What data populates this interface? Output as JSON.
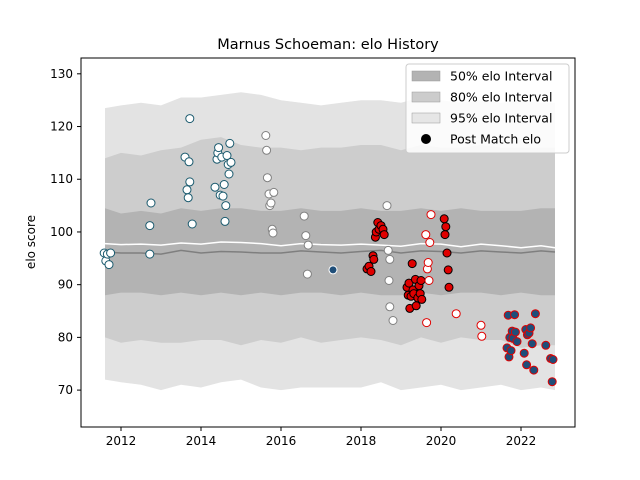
{
  "chart_data": {
    "type": "scatter",
    "title": "Marnus Schoeman: elo History",
    "xlabel": "",
    "ylabel": "elo score",
    "xlim": [
      2011.0,
      2023.35
    ],
    "ylim": [
      63,
      133
    ],
    "xticks": [
      2012,
      2014,
      2016,
      2018,
      2020,
      2022
    ],
    "yticks": [
      70,
      80,
      90,
      100,
      110,
      120,
      130
    ],
    "grid": false,
    "legend_position": "top-right",
    "legend": [
      {
        "label": "50% elo Interval",
        "kind": "patch",
        "color": "#b3b3b3"
      },
      {
        "label": "80% elo Interval",
        "kind": "patch",
        "color": "#cccccc"
      },
      {
        "label": "95% elo Interval",
        "kind": "patch",
        "color": "#e6e6e6"
      },
      {
        "label": "Post Match elo",
        "kind": "marker",
        "color": "#000000"
      }
    ],
    "intervals": {
      "x": [
        2011.6,
        2012.0,
        2012.5,
        2013.0,
        2013.5,
        2014.0,
        2014.5,
        2015.0,
        2015.5,
        2016.0,
        2016.5,
        2017.0,
        2017.5,
        2018.0,
        2018.5,
        2019.0,
        2019.5,
        2020.0,
        2020.5,
        2021.0,
        2021.5,
        2022.0,
        2022.5,
        2022.85
      ],
      "band95": {
        "upper": [
          123.5,
          124.0,
          124.5,
          124.0,
          125.5,
          125.5,
          126.0,
          126.5,
          126.0,
          125.0,
          124.5,
          124.0,
          124.5,
          125.0,
          125.0,
          124.5,
          125.5,
          125.0,
          124.5,
          125.0,
          124.5,
          125.0,
          124.5,
          124.5
        ],
        "lower": [
          72.0,
          71.5,
          71.0,
          70.0,
          71.0,
          70.5,
          71.5,
          72.0,
          70.5,
          70.0,
          70.5,
          70.5,
          70.5,
          70.5,
          71.5,
          70.0,
          70.5,
          71.0,
          70.0,
          70.5,
          71.0,
          70.0,
          70.5,
          70.0
        ]
      },
      "band80": {
        "upper": [
          114.0,
          115.0,
          114.5,
          115.5,
          116.0,
          117.5,
          118.0,
          116.5,
          116.0,
          116.0,
          115.5,
          116.0,
          116.0,
          116.5,
          116.5,
          115.5,
          116.5,
          116.0,
          116.0,
          116.5,
          116.0,
          116.0,
          116.0,
          116.0
        ],
        "lower": [
          80.0,
          79.0,
          79.5,
          79.0,
          79.0,
          79.5,
          79.5,
          78.5,
          79.5,
          79.0,
          80.0,
          79.0,
          79.5,
          80.0,
          79.5,
          78.5,
          80.0,
          79.0,
          80.0,
          79.5,
          79.5,
          78.0,
          78.5,
          78.5
        ]
      },
      "band50": {
        "upper": [
          104.5,
          103.5,
          104.0,
          103.5,
          104.5,
          104.0,
          104.5,
          104.5,
          104.0,
          104.0,
          104.5,
          104.0,
          104.0,
          104.5,
          104.0,
          104.0,
          104.5,
          104.0,
          104.5,
          104.0,
          104.0,
          104.0,
          104.5,
          104.5
        ],
        "lower": [
          88.0,
          88.5,
          88.5,
          88.0,
          88.5,
          88.0,
          88.5,
          88.0,
          88.5,
          88.0,
          88.5,
          88.5,
          88.0,
          88.5,
          88.0,
          88.0,
          88.5,
          88.0,
          88.5,
          88.5,
          88.0,
          88.5,
          88.0,
          88.0
        ]
      },
      "median_line": [
        96.2,
        96.0,
        96.0,
        95.8,
        96.5,
        96.0,
        96.3,
        96.2,
        96.0,
        96.0,
        96.4,
        96.2,
        96.0,
        96.3,
        96.5,
        96.0,
        96.4,
        96.3,
        96.0,
        96.4,
        96.2,
        96.0,
        96.4,
        96.2
      ],
      "mean_line": [
        97.8,
        97.6,
        97.7,
        97.5,
        97.9,
        97.7,
        98.1,
        98.0,
        97.8,
        97.4,
        97.8,
        97.6,
        97.5,
        97.7,
        97.5,
        97.3,
        97.8,
        97.7,
        97.2,
        97.7,
        97.4,
        97.0,
        97.4,
        97.0
      ]
    },
    "series": [
      {
        "fill": "#ffffff",
        "edge": "#1a5a6e",
        "points": [
          [
            2011.58,
            96.0
          ],
          [
            2011.62,
            94.5
          ],
          [
            2011.66,
            95.8
          ],
          [
            2011.7,
            93.8
          ],
          [
            2011.74,
            96.0
          ],
          [
            2012.72,
            101.2
          ],
          [
            2012.75,
            105.5
          ],
          [
            2012.72,
            95.8
          ],
          [
            2013.6,
            114.2
          ],
          [
            2013.65,
            108.0
          ],
          [
            2013.68,
            106.5
          ],
          [
            2013.7,
            113.3
          ],
          [
            2013.72,
            109.5
          ],
          [
            2013.72,
            121.5
          ],
          [
            2013.78,
            101.5
          ],
          [
            2014.35,
            108.5
          ],
          [
            2014.4,
            113.8
          ],
          [
            2014.42,
            115.0
          ],
          [
            2014.44,
            116.0
          ],
          [
            2014.48,
            107.0
          ],
          [
            2014.52,
            114.2
          ],
          [
            2014.55,
            106.8
          ],
          [
            2014.58,
            109.0
          ],
          [
            2014.6,
            102.0
          ],
          [
            2014.62,
            105.0
          ],
          [
            2014.65,
            114.5
          ],
          [
            2014.68,
            112.8
          ],
          [
            2014.7,
            111.0
          ],
          [
            2014.72,
            116.8
          ],
          [
            2014.75,
            113.2
          ]
        ]
      },
      {
        "fill": "#ffffff",
        "edge": "#808080",
        "points": [
          [
            2015.62,
            118.3
          ],
          [
            2015.64,
            115.5
          ],
          [
            2015.66,
            110.3
          ],
          [
            2015.7,
            107.2
          ],
          [
            2015.72,
            105.0
          ],
          [
            2015.75,
            105.5
          ],
          [
            2015.78,
            100.5
          ],
          [
            2015.8,
            99.8
          ],
          [
            2015.82,
            107.5
          ],
          [
            2016.58,
            103.0
          ],
          [
            2016.62,
            99.3
          ],
          [
            2016.66,
            92.0
          ],
          [
            2016.68,
            97.5
          ],
          [
            2018.65,
            105.0
          ],
          [
            2018.68,
            96.5
          ],
          [
            2018.7,
            90.8
          ],
          [
            2018.72,
            85.8
          ],
          [
            2018.72,
            94.8
          ],
          [
            2018.8,
            83.2
          ]
        ]
      },
      {
        "fill": "#1f4e79",
        "edge": "#ffffff",
        "points": [
          [
            2017.3,
            92.8
          ]
        ]
      },
      {
        "fill": "#e00000",
        "edge": "#000000",
        "points": [
          [
            2018.15,
            93.0
          ],
          [
            2018.2,
            93.5
          ],
          [
            2018.25,
            92.5
          ],
          [
            2018.3,
            95.5
          ],
          [
            2018.32,
            94.8
          ],
          [
            2018.36,
            99.0
          ],
          [
            2018.38,
            100.0
          ],
          [
            2018.42,
            101.8
          ],
          [
            2018.45,
            100.5
          ],
          [
            2018.5,
            101.2
          ],
          [
            2018.55,
            100.5
          ],
          [
            2018.58,
            99.5
          ],
          [
            2019.15,
            89.5
          ],
          [
            2019.18,
            88.0
          ],
          [
            2019.2,
            90.3
          ],
          [
            2019.22,
            85.5
          ],
          [
            2019.25,
            87.8
          ],
          [
            2019.28,
            94.0
          ],
          [
            2019.3,
            89.0
          ],
          [
            2019.32,
            88.3
          ],
          [
            2019.36,
            91.0
          ],
          [
            2019.38,
            86.0
          ],
          [
            2019.42,
            87.5
          ],
          [
            2019.45,
            89.8
          ],
          [
            2019.48,
            88.3
          ],
          [
            2019.5,
            90.8
          ],
          [
            2019.52,
            87.2
          ],
          [
            2020.08,
            102.5
          ],
          [
            2020.1,
            99.5
          ],
          [
            2020.12,
            101.0
          ],
          [
            2020.15,
            96.0
          ],
          [
            2020.18,
            92.8
          ],
          [
            2020.2,
            89.5
          ]
        ]
      },
      {
        "fill": "#ffffff",
        "edge": "#e00000",
        "points": [
          [
            2019.62,
            99.5
          ],
          [
            2019.64,
            82.8
          ],
          [
            2019.66,
            93.0
          ],
          [
            2019.68,
            94.2
          ],
          [
            2019.7,
            90.8
          ],
          [
            2019.72,
            98.0
          ],
          [
            2019.75,
            103.3
          ],
          [
            2020.38,
            84.5
          ],
          [
            2021.0,
            82.3
          ],
          [
            2021.02,
            80.2
          ]
        ]
      },
      {
        "fill": "#1f4e79",
        "edge": "#e00000",
        "points": [
          [
            2021.65,
            78.0
          ],
          [
            2021.68,
            84.2
          ],
          [
            2021.7,
            76.3
          ],
          [
            2021.72,
            80.0
          ],
          [
            2021.75,
            77.5
          ],
          [
            2021.78,
            81.2
          ],
          [
            2021.8,
            79.8
          ],
          [
            2021.84,
            84.3
          ],
          [
            2021.86,
            81.0
          ],
          [
            2021.9,
            79.2
          ],
          [
            2022.08,
            77.0
          ],
          [
            2022.12,
            81.5
          ],
          [
            2022.14,
            74.8
          ],
          [
            2022.16,
            80.5
          ],
          [
            2022.2,
            80.8
          ],
          [
            2022.24,
            81.8
          ],
          [
            2022.28,
            78.8
          ],
          [
            2022.32,
            73.8
          ],
          [
            2022.36,
            84.5
          ],
          [
            2022.62,
            78.5
          ],
          [
            2022.74,
            76.0
          ],
          [
            2022.78,
            71.6
          ],
          [
            2022.8,
            75.8
          ]
        ]
      }
    ]
  }
}
